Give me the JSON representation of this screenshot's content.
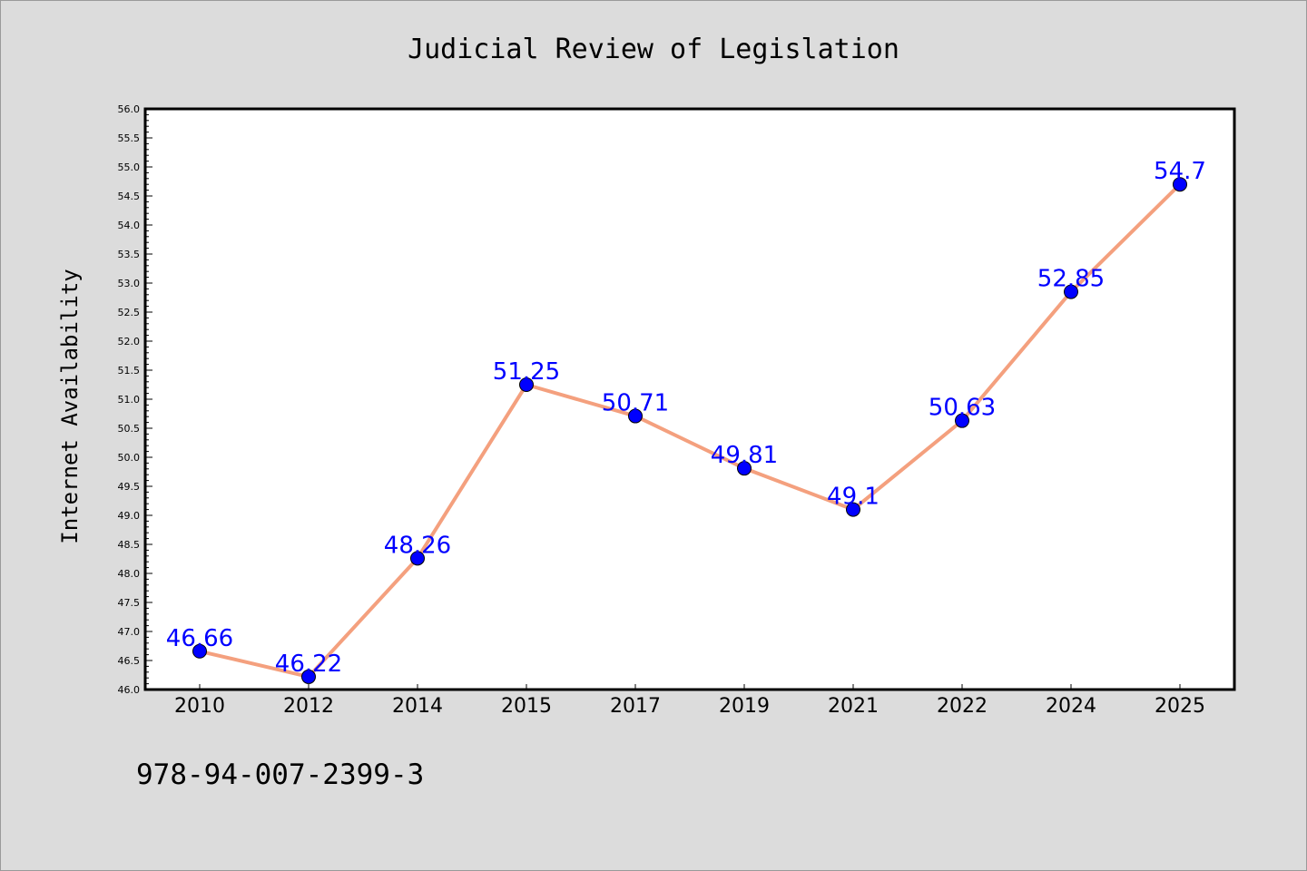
{
  "chart_data": {
    "type": "line",
    "title": "Judicial Review of Legislation",
    "xlabel": "",
    "ylabel": "Internet Availability",
    "categories": [
      "2010",
      "2012",
      "2014",
      "2015",
      "2017",
      "2019",
      "2021",
      "2022",
      "2024",
      "2025"
    ],
    "values": [
      46.66,
      46.22,
      48.26,
      51.25,
      50.71,
      49.81,
      49.1,
      50.63,
      52.85,
      54.7
    ],
    "data_labels": [
      "46.66",
      "46.22",
      "48.26",
      "51.25",
      "50.71",
      "49.81",
      "49.1",
      "50.63",
      "52.85",
      "54.7"
    ],
    "ylim": [
      46.0,
      56.0
    ],
    "y_ticks": [
      "46.0",
      "46.5",
      "47.0",
      "47.5",
      "48.0",
      "48.5",
      "49.0",
      "49.5",
      "50.0",
      "50.5",
      "51.0",
      "51.5",
      "52.0",
      "52.5",
      "53.0",
      "53.5",
      "54.0",
      "54.5",
      "55.0",
      "55.5",
      "56.0"
    ],
    "grid": false,
    "legend": "none",
    "colors": {
      "line": "#f4a07e",
      "marker": "#0000ff",
      "data_label": "#0000ff",
      "background": "#dcdcdc",
      "plot_background": "#ffffff"
    }
  },
  "footer": {
    "isbn": "978-94-007-2399-3"
  }
}
